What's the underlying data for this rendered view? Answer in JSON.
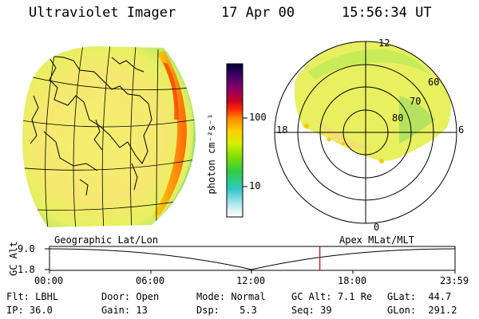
{
  "header": {
    "instrument": "Ultraviolet Imager",
    "date": "17 Apr 00",
    "time": "15:56:34 UT"
  },
  "colorbar": {
    "unit_label": "photon cm⁻²s⁻¹",
    "ticks": [
      "100",
      "10"
    ],
    "colors": [
      "#000033",
      "#3a0060",
      "#8a006a",
      "#c80028",
      "#ff2a00",
      "#ff8c00",
      "#ffd000",
      "#d8f000",
      "#88e000",
      "#30cc40",
      "#30c8c8",
      "#b8e8f0",
      "#ffffff"
    ]
  },
  "polar_plot": {
    "mlt_labels": {
      "top": "12",
      "left": "18",
      "right": "6",
      "bottom": "0"
    },
    "lat_labels": [
      "60",
      "70",
      "80"
    ]
  },
  "timeline": {
    "left_label": "Geographic Lat/Lon",
    "right_label": "Apex MLat/MLT",
    "y_axis_label": "GC Alt",
    "y_ticks": [
      "9.0",
      "1.8"
    ],
    "x_ticks": [
      "00:00",
      "06:00",
      "12:00",
      "18:00",
      "23:59"
    ],
    "current_marker_hours": 16.0
  },
  "info": {
    "row1": [
      {
        "key": "Flt:",
        "value": "LBHL"
      },
      {
        "key": "Door:",
        "value": "Open"
      },
      {
        "key": "Mode:",
        "value": "Normal"
      },
      {
        "key": "GC Alt:",
        "value": "7.1 Re"
      },
      {
        "key": "GLat:",
        "value": "44.7"
      }
    ],
    "row2": [
      {
        "key": "IP:",
        "value": "36.0"
      },
      {
        "key": "Gain:",
        "value": "13"
      },
      {
        "key": "Dsp:",
        "value": "5.3"
      },
      {
        "key": "Seq:",
        "value": "39"
      },
      {
        "key": "GLon:",
        "value": "291.2"
      }
    ]
  }
}
